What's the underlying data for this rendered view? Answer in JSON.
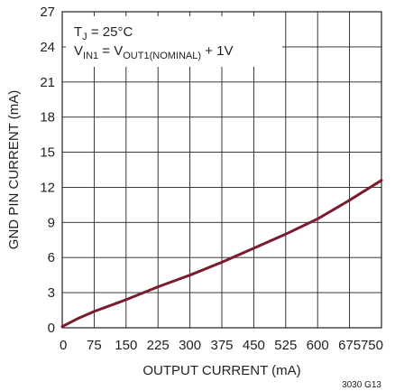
{
  "chart_data": {
    "type": "line",
    "xlabel": "OUTPUT CURRENT (mA)",
    "ylabel": "GND PIN CURRENT (mA)",
    "xlim": [
      0,
      750
    ],
    "ylim": [
      0,
      27
    ],
    "xticks": [
      "0",
      "75",
      "150",
      "225",
      "300",
      "375",
      "450",
      "525",
      "600",
      "675",
      "750"
    ],
    "yticks": [
      "0",
      "3",
      "6",
      "9",
      "12",
      "15",
      "18",
      "21",
      "24",
      "27"
    ],
    "grid": true,
    "annotation": {
      "line1_main": "T",
      "line1_sub": "J",
      "line1_rest": " = 25°C",
      "line2_main": "V",
      "line2_sub": "IN1",
      "line2_mid": " = V",
      "line2_sub2": "OUT1(NOMINAL)",
      "line2_rest": " + 1V"
    },
    "figure_id": "3030 G13",
    "line_color": "#7a1c2e",
    "series": [
      {
        "x": [
          0,
          37.5,
          75,
          150,
          225,
          300,
          375,
          450,
          525,
          600,
          675,
          750
        ],
        "y": [
          0.1,
          0.8,
          1.4,
          2.4,
          3.5,
          4.5,
          5.6,
          6.8,
          8.0,
          9.3,
          10.9,
          12.6
        ]
      }
    ]
  }
}
